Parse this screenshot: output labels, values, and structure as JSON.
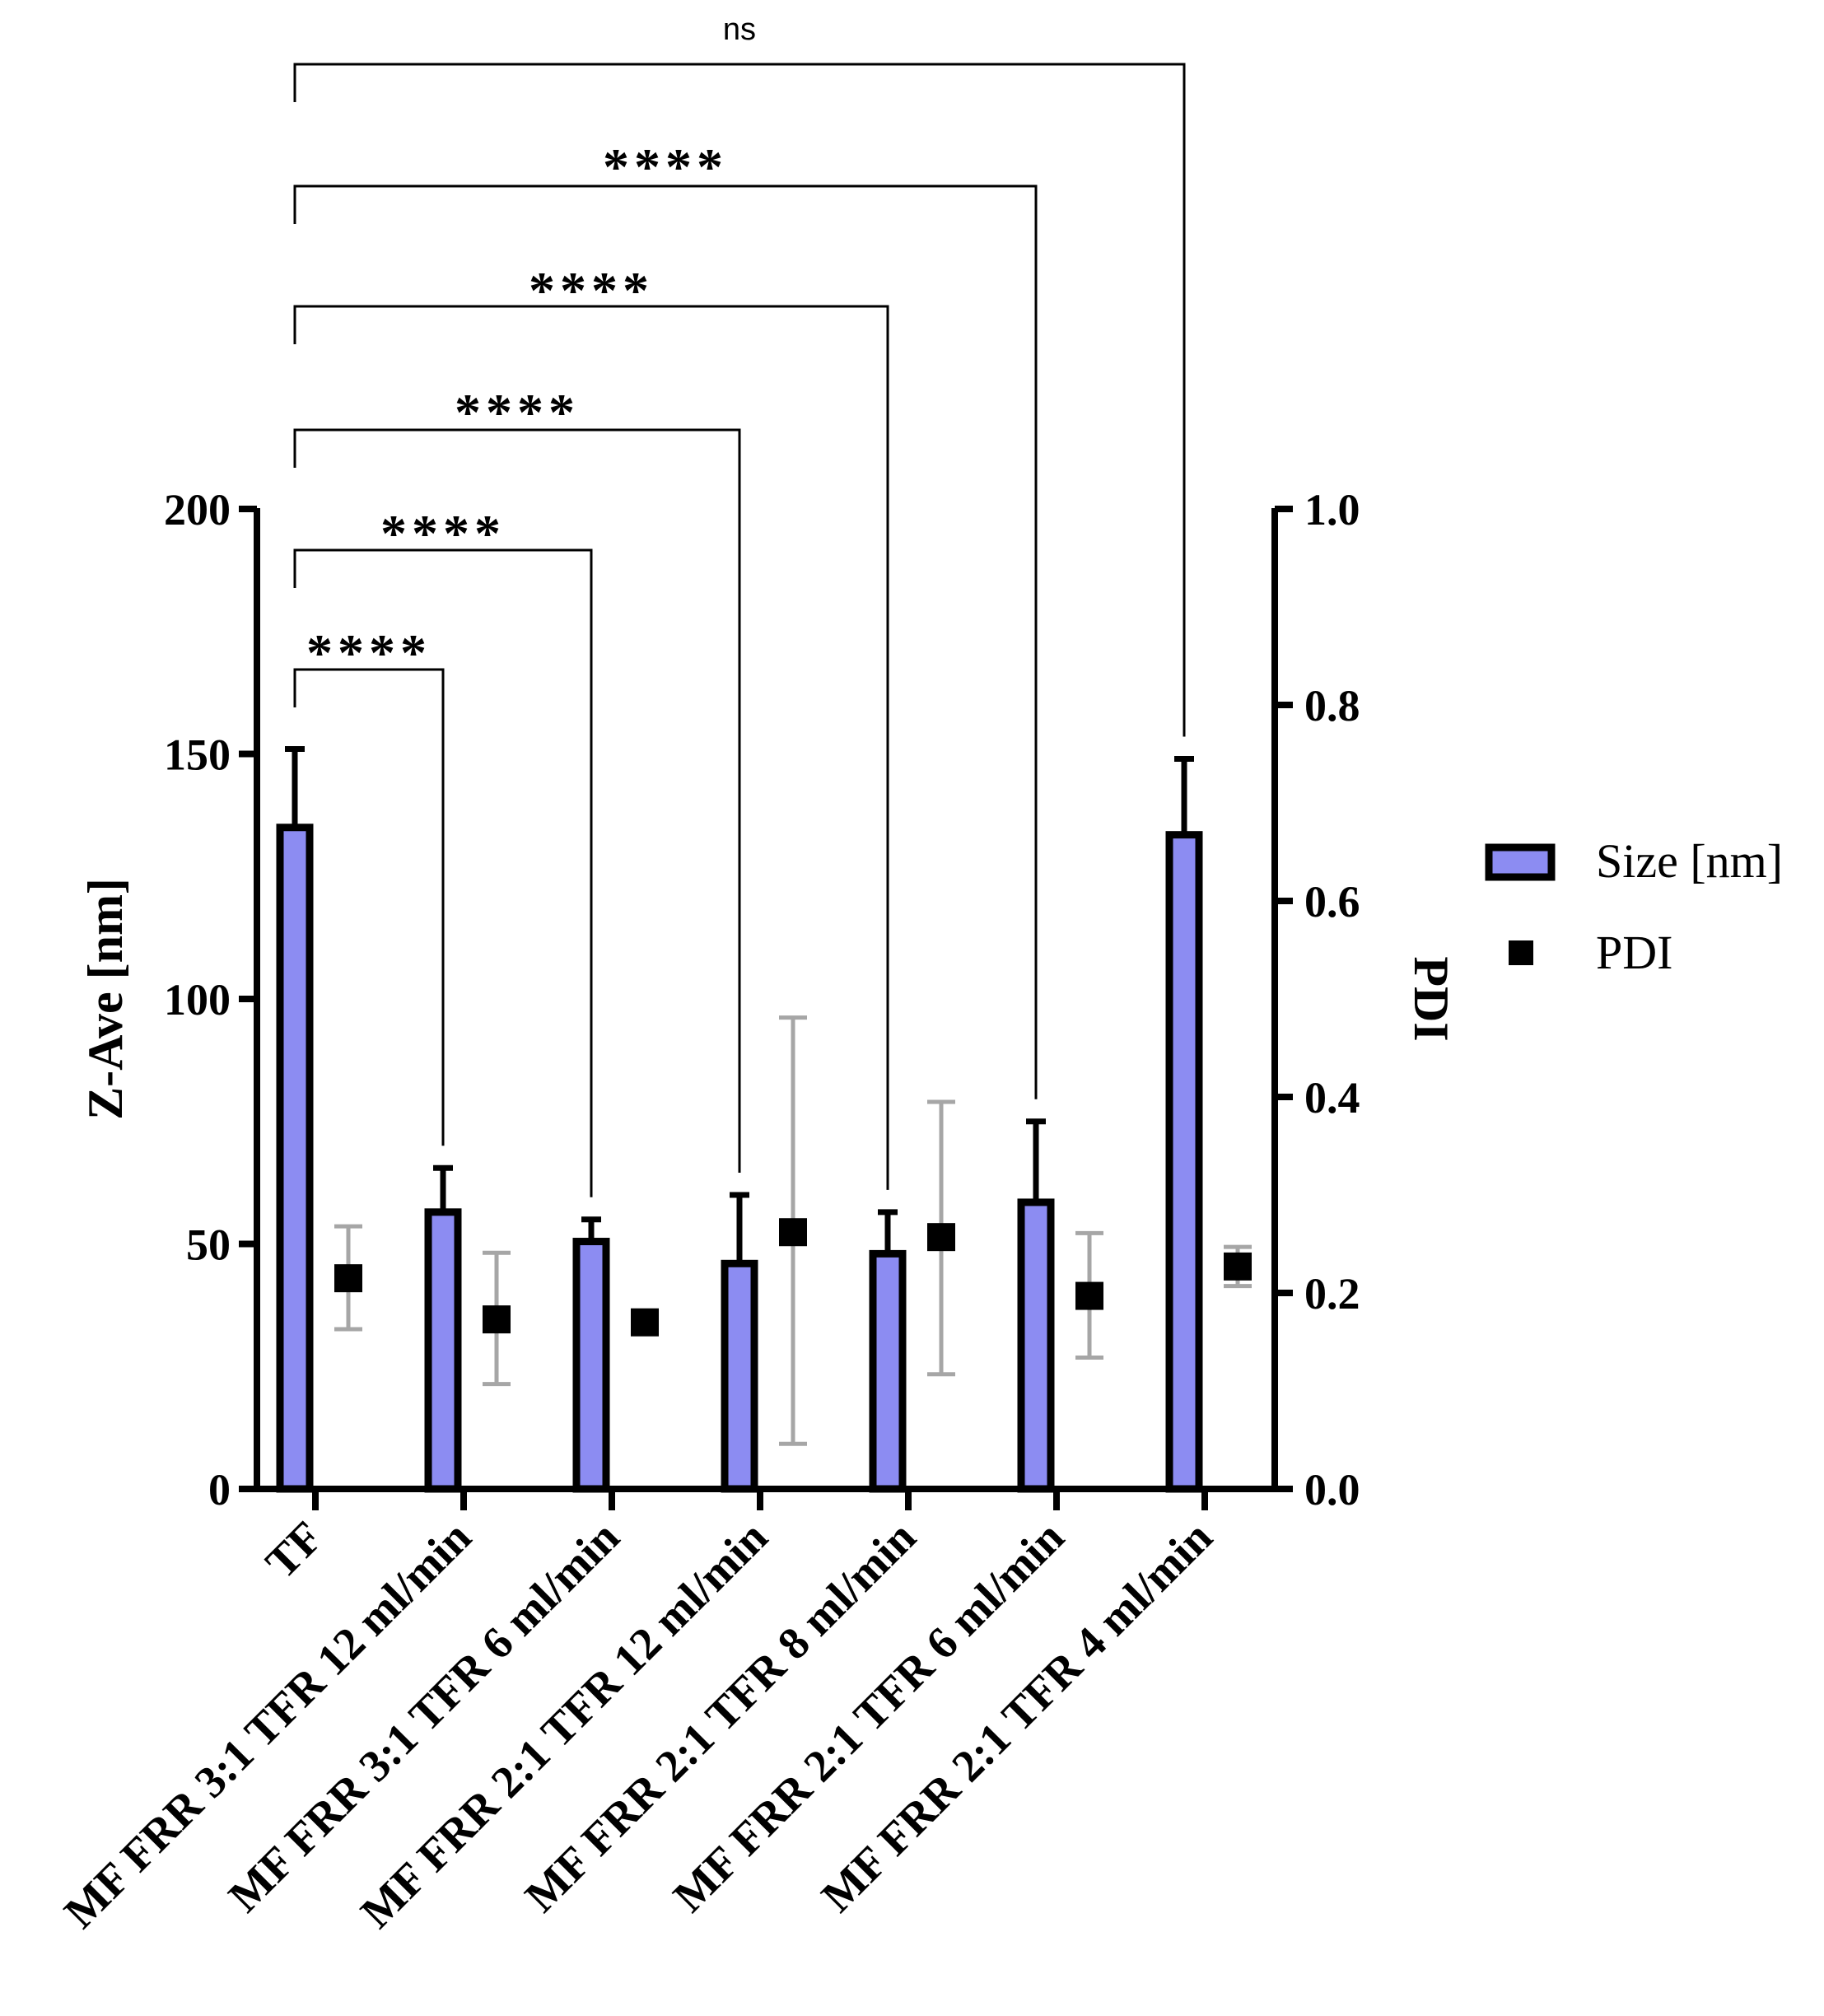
{
  "chart_data": {
    "type": "bar",
    "categories": [
      "TF",
      "MF FRR 3:1 TFR 12 ml/min",
      "MF FRR 3:1 TFR 6 ml/min",
      "MF FRR 2:1 TFR 12 ml/min",
      "MF FRR 2:1 TFR 8 ml/min",
      "MF FRR 2:1 TFR 6 ml/min",
      "MF FRR 2:1 TFR 4 ml/min"
    ],
    "series": [
      {
        "name": "Size [nm]",
        "axis": "left",
        "kind": "bar",
        "color": "#8c8cf2",
        "values": [
          135,
          56.5,
          50.5,
          46,
          48,
          58.5,
          133.5
        ],
        "error_upper": [
          151,
          65.5,
          55,
          60,
          56.5,
          75,
          149
        ]
      },
      {
        "name": "PDI",
        "axis": "right",
        "kind": "scatter",
        "color": "#000000",
        "error_color": "#a6a6a6",
        "values": [
          0.215,
          0.173,
          0.17,
          0.262,
          0.257,
          0.197,
          0.227
        ],
        "error_low": [
          0.163,
          0.107,
          0.17,
          0.046,
          0.117,
          0.134,
          0.207
        ],
        "error_high": [
          0.268,
          0.241,
          0.17,
          0.481,
          0.395,
          0.261,
          0.247
        ]
      }
    ],
    "ylabel": "Z-Ave [nm]",
    "ylim": [
      0,
      200
    ],
    "yticks": [
      "0",
      "50",
      "100",
      "150",
      "200"
    ],
    "y2label": "PDI",
    "y2lim": [
      0,
      1
    ],
    "y2ticks": [
      "0.0",
      "0.2",
      "0.4",
      "0.6",
      "0.8",
      "1.0"
    ],
    "legend_position": "right",
    "significance": [
      {
        "from": 0,
        "to": 1,
        "label": "****"
      },
      {
        "from": 0,
        "to": 2,
        "label": "****"
      },
      {
        "from": 0,
        "to": 3,
        "label": "****"
      },
      {
        "from": 0,
        "to": 4,
        "label": "****"
      },
      {
        "from": 0,
        "to": 5,
        "label": "****"
      },
      {
        "from": 0,
        "to": 6,
        "label": "ns"
      }
    ]
  }
}
